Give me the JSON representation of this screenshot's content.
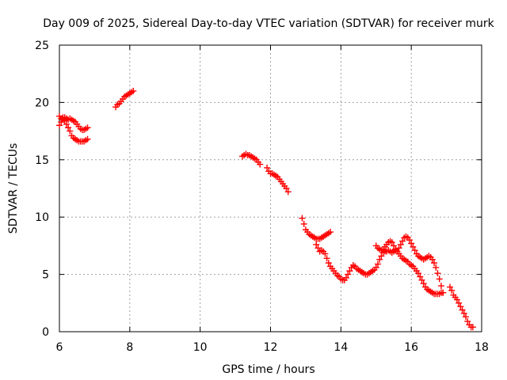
{
  "chart_data": {
    "type": "scatter",
    "title": "Day 009 of 2025, Sidereal Day-to-day VTEC variation (SDTVAR) for receiver murk",
    "xlabel": "GPS time / hours",
    "ylabel": "SDTVAR / TECUs",
    "xlim": [
      6,
      18
    ],
    "ylim": [
      0,
      25
    ],
    "xticks": [
      "6",
      "8",
      "10",
      "12",
      "14",
      "16",
      "18"
    ],
    "yticks": [
      "0",
      "5",
      "10",
      "15",
      "20",
      "25"
    ],
    "grid": true,
    "marker": "+",
    "marker_color": "#ff0000",
    "series": [
      {
        "name": "seg1",
        "x": [
          6.0,
          6.05,
          6.1,
          6.15,
          6.2,
          6.25,
          6.3,
          6.35,
          6.4,
          6.45,
          6.5,
          6.55,
          6.6,
          6.65,
          6.7,
          6.75,
          6.8
        ],
        "y": [
          18.8,
          18.6,
          18.7,
          18.7,
          18.6,
          18.5,
          18.6,
          18.5,
          18.4,
          18.3,
          18.1,
          17.9,
          17.7,
          17.6,
          17.6,
          17.7,
          17.8
        ]
      },
      {
        "name": "seg2",
        "x": [
          6.0,
          6.05,
          6.1,
          6.15,
          6.2,
          6.25,
          6.3,
          6.35,
          6.4,
          6.45,
          6.5,
          6.55,
          6.6,
          6.65,
          6.7,
          6.75,
          6.8
        ],
        "y": [
          18.0,
          18.3,
          18.5,
          18.4,
          18.1,
          17.8,
          17.5,
          17.1,
          16.9,
          16.8,
          16.7,
          16.6,
          16.6,
          16.6,
          16.6,
          16.7,
          16.8
        ]
      },
      {
        "name": "seg3",
        "x": [
          7.6,
          7.65,
          7.7,
          7.75,
          7.8,
          7.85,
          7.9,
          7.95,
          8.0,
          8.05,
          8.1
        ],
        "y": [
          19.6,
          19.8,
          19.9,
          20.1,
          20.3,
          20.5,
          20.6,
          20.7,
          20.8,
          20.9,
          21.0
        ]
      },
      {
        "name": "seg4",
        "x": [
          11.2,
          11.25,
          11.3,
          11.35,
          11.4,
          11.45,
          11.5,
          11.55,
          11.6,
          11.65,
          11.7
        ],
        "y": [
          15.3,
          15.4,
          15.5,
          15.4,
          15.4,
          15.3,
          15.2,
          15.1,
          15.0,
          14.8,
          14.6
        ]
      },
      {
        "name": "seg5",
        "x": [
          11.9,
          11.95,
          12.0,
          12.05,
          12.1,
          12.15,
          12.2,
          12.25,
          12.3,
          12.35,
          12.4,
          12.45,
          12.5
        ],
        "y": [
          14.3,
          14.0,
          13.8,
          13.8,
          13.7,
          13.6,
          13.5,
          13.3,
          13.1,
          12.9,
          12.7,
          12.5,
          12.2
        ]
      },
      {
        "name": "seg6",
        "x": [
          12.9,
          12.95,
          13.0,
          13.05,
          13.1,
          13.15,
          13.2,
          13.25,
          13.3,
          13.35,
          13.4,
          13.45,
          13.5,
          13.55,
          13.6,
          13.65,
          13.7
        ],
        "y": [
          9.9,
          9.4,
          8.9,
          8.7,
          8.5,
          8.4,
          8.3,
          8.2,
          8.1,
          8.1,
          8.1,
          8.2,
          8.3,
          8.4,
          8.5,
          8.6,
          8.7
        ]
      },
      {
        "name": "seg7",
        "x": [
          13.3,
          13.35,
          13.4,
          13.45,
          13.5,
          13.55,
          13.6,
          13.65,
          13.7,
          13.75,
          13.8,
          13.85,
          13.9,
          13.95,
          14.0,
          14.05,
          14.1,
          14.15,
          14.2,
          14.25,
          14.3,
          14.35,
          14.4,
          14.45,
          14.5,
          14.55,
          14.6,
          14.65,
          14.7,
          14.75,
          14.8,
          14.85,
          14.9,
          14.95,
          15.0,
          15.05,
          15.1,
          15.15,
          15.2,
          15.25,
          15.3,
          15.35,
          15.4,
          15.45,
          15.5,
          15.55,
          15.6,
          15.65,
          15.7,
          15.75,
          15.8,
          15.85,
          15.9,
          15.95,
          16.0,
          16.05,
          16.1,
          16.15,
          16.2,
          16.25,
          16.3,
          16.35,
          16.4,
          16.45,
          16.5,
          16.55,
          16.6,
          16.65,
          16.7,
          16.75,
          16.8,
          16.85,
          16.9
        ],
        "y": [
          7.6,
          7.3,
          7.0,
          7.1,
          7.0,
          6.8,
          6.4,
          6.0,
          5.7,
          5.5,
          5.3,
          5.1,
          4.9,
          4.8,
          4.6,
          4.5,
          4.5,
          4.7,
          5.0,
          5.3,
          5.6,
          5.8,
          5.7,
          5.5,
          5.4,
          5.3,
          5.2,
          5.1,
          5.0,
          5.0,
          5.1,
          5.2,
          5.3,
          5.4,
          5.6,
          5.9,
          6.3,
          6.6,
          6.9,
          7.0,
          7.0,
          7.1,
          7.0,
          6.9,
          7.0,
          7.1,
          7.0,
          6.8,
          6.6,
          6.4,
          6.3,
          6.2,
          6.1,
          5.9,
          5.8,
          5.7,
          5.5,
          5.3,
          5.1,
          4.8,
          4.5,
          4.2,
          3.9,
          3.7,
          3.6,
          3.5,
          3.4,
          3.3,
          3.3,
          3.3,
          3.3,
          3.4,
          3.4
        ]
      },
      {
        "name": "seg8",
        "x": [
          15.0,
          15.05,
          15.1,
          15.15,
          15.2,
          15.25,
          15.3,
          15.35,
          15.4,
          15.45,
          15.5,
          15.55,
          15.6,
          15.65,
          15.7,
          15.75,
          15.8,
          15.85,
          15.9,
          15.95,
          16.0,
          16.05,
          16.1,
          16.15,
          16.2,
          16.25,
          16.3,
          16.35,
          16.4,
          16.45,
          16.5,
          16.55,
          16.6,
          16.65,
          16.7,
          16.75,
          16.8,
          16.85,
          16.9
        ],
        "y": [
          7.5,
          7.3,
          7.2,
          7.1,
          7.2,
          7.4,
          7.6,
          7.8,
          7.9,
          7.8,
          7.5,
          7.2,
          7.0,
          7.3,
          7.6,
          7.9,
          8.2,
          8.3,
          8.2,
          8.0,
          7.7,
          7.4,
          7.1,
          6.8,
          6.6,
          6.5,
          6.4,
          6.3,
          6.4,
          6.5,
          6.6,
          6.5,
          6.3,
          6.0,
          5.6,
          5.1,
          4.6,
          4.0,
          3.4
        ]
      },
      {
        "name": "seg9",
        "x": [
          17.1,
          17.15,
          17.2,
          17.25,
          17.3,
          17.35,
          17.4,
          17.45,
          17.5,
          17.55,
          17.6,
          17.65,
          17.7,
          17.75
        ],
        "y": [
          3.9,
          3.6,
          3.2,
          3.0,
          2.8,
          2.5,
          2.2,
          1.9,
          1.6,
          1.3,
          0.9,
          0.6,
          0.4,
          0.4
        ]
      }
    ]
  }
}
